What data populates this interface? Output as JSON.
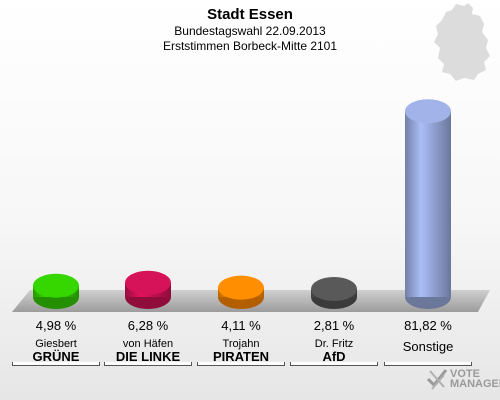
{
  "header": {
    "title": "Stadt Essen",
    "subtitle1": "Bundestagswahl 22.09.2013",
    "subtitle2": "Erststimmen Borbeck-Mitte 2101"
  },
  "watermark": {
    "line1": "VOTE",
    "line2": "MANAGER"
  },
  "chart_data": {
    "type": "bar",
    "categories": [
      "GRÜNE",
      "DIE LINKE",
      "PIRATEN",
      "AfD",
      "Sonstige"
    ],
    "candidates": [
      "Giesbert",
      "von Häfen",
      "Trojahn",
      "Dr. Fritz",
      ""
    ],
    "values": [
      4.98,
      6.28,
      4.11,
      2.81,
      81.82
    ],
    "value_labels": [
      "4,98 %",
      "6,28 %",
      "4,11 %",
      "2,81 %",
      "81,82 %"
    ],
    "colors": [
      "#33cc00",
      "#cc1155",
      "#ff8800",
      "#555555",
      "#99aadd"
    ],
    "ylim": [
      0,
      100
    ]
  }
}
